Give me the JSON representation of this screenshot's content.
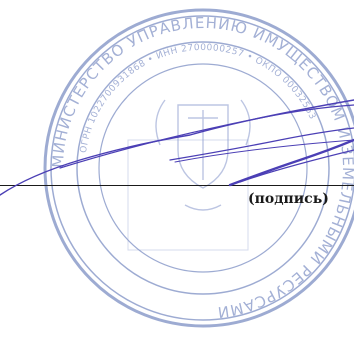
{
  "document": {
    "caption": "(подпись)"
  },
  "stamp": {
    "outer_text": "МИНИСТЕРСТВО УПРАВЛЕНИЮ ИМУЩЕСТВОМ И ЗЕМЕЛЬНЫМИ РЕСУРСАМИ",
    "inner_text": "ОГРН 1022700931868 • ИНН 2700000257 • ОКПО 00032563",
    "ink_color": "#7d8fc4"
  },
  "signature": {
    "ink_color": "#4b3fb5"
  }
}
